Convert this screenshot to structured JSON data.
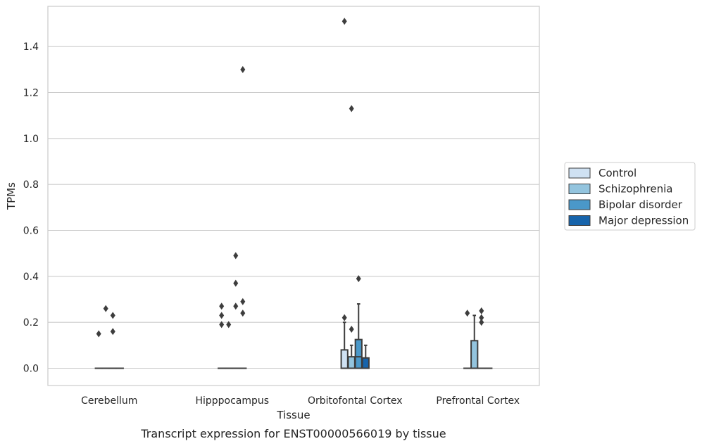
{
  "chart_data": {
    "type": "box",
    "caption": "Transcript expression for ENST00000566019 by tissue",
    "xlabel": "Tissue",
    "ylabel": "TPMs",
    "ylim": [
      -0.075,
      1.575
    ],
    "yticks": [
      0.0,
      0.2,
      0.4,
      0.6,
      0.8,
      1.0,
      1.2,
      1.4
    ],
    "ytick_labels": [
      "0.0",
      "0.2",
      "0.4",
      "0.6",
      "0.8",
      "1.0",
      "1.2",
      "1.4"
    ],
    "grid": true,
    "legend_position": "right",
    "categories": [
      "Cerebellum",
      "Hipppocampus",
      "Orbitofontal Cortex",
      "Prefrontal Cortex"
    ],
    "series": [
      {
        "name": "Control",
        "color": "#cfe1f2",
        "boxes": [
          {
            "q1": 0,
            "median": 0,
            "q3": 0,
            "whisker_low": 0,
            "whisker_high": 0,
            "outliers": [
              0.15
            ]
          },
          {
            "q1": 0,
            "median": 0,
            "q3": 0,
            "whisker_low": 0,
            "whisker_high": 0,
            "outliers": [
              0.19,
              0.23,
              0.27
            ]
          },
          {
            "q1": 0,
            "median": 0,
            "q3": 0.08,
            "whisker_low": 0,
            "whisker_high": 0.2,
            "outliers": [
              0.22,
              1.51
            ]
          },
          {
            "q1": 0,
            "median": 0,
            "q3": 0,
            "whisker_low": 0,
            "whisker_high": 0,
            "outliers": [
              0.24
            ]
          }
        ]
      },
      {
        "name": "Schizophrenia",
        "color": "#93c4de",
        "boxes": [
          {
            "q1": 0,
            "median": 0,
            "q3": 0,
            "whisker_low": 0,
            "whisker_high": 0,
            "outliers": [
              0.26
            ]
          },
          {
            "q1": 0,
            "median": 0,
            "q3": 0,
            "whisker_low": 0,
            "whisker_high": 0,
            "outliers": [
              0.19
            ]
          },
          {
            "q1": 0,
            "median": 0,
            "q3": 0.05,
            "whisker_low": 0,
            "whisker_high": 0.1,
            "outliers": [
              0.17,
              1.13
            ]
          },
          {
            "q1": 0,
            "median": 0,
            "q3": 0.12,
            "whisker_low": 0,
            "whisker_high": 0.23,
            "outliers": []
          }
        ]
      },
      {
        "name": "Bipolar disorder",
        "color": "#4a98c9",
        "boxes": [
          {
            "q1": 0,
            "median": 0,
            "q3": 0,
            "whisker_low": 0,
            "whisker_high": 0,
            "outliers": [
              0.16,
              0.23
            ]
          },
          {
            "q1": 0,
            "median": 0,
            "q3": 0,
            "whisker_low": 0,
            "whisker_high": 0,
            "outliers": [
              0.27,
              0.37,
              0.49
            ]
          },
          {
            "q1": 0,
            "median": 0.05,
            "q3": 0.125,
            "whisker_low": 0,
            "whisker_high": 0.28,
            "outliers": [
              0.39
            ]
          },
          {
            "q1": 0,
            "median": 0,
            "q3": 0,
            "whisker_low": 0,
            "whisker_high": 0,
            "outliers": [
              0.2,
              0.22,
              0.25
            ]
          }
        ]
      },
      {
        "name": "Major depression",
        "color": "#1764ab",
        "boxes": [
          {
            "q1": 0,
            "median": 0,
            "q3": 0,
            "whisker_low": 0,
            "whisker_high": 0,
            "outliers": []
          },
          {
            "q1": 0,
            "median": 0,
            "q3": 0,
            "whisker_low": 0,
            "whisker_high": 0,
            "outliers": [
              0.24,
              0.29,
              1.3
            ]
          },
          {
            "q1": 0,
            "median": 0,
            "q3": 0.045,
            "whisker_low": 0,
            "whisker_high": 0.1,
            "outliers": []
          },
          {
            "q1": 0,
            "median": 0,
            "q3": 0,
            "whisker_low": 0,
            "whisker_high": 0,
            "outliers": []
          }
        ]
      }
    ]
  }
}
